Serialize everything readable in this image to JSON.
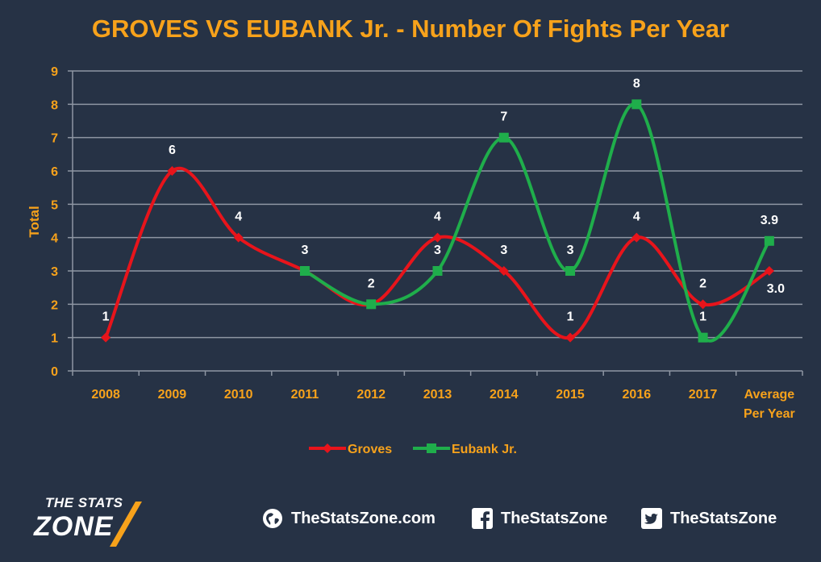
{
  "title": "GROVES VS EUBANK Jr. - Number Of Fights Per Year",
  "colors": {
    "background": "#263245",
    "accent": "#f7a21b",
    "groves": "#e8141b",
    "eubank": "#1fae4b",
    "grid": "#8e96a3"
  },
  "chart_data": {
    "type": "line",
    "title": "GROVES VS EUBANK Jr. - Number Of Fights Per Year",
    "ylabel": "Total",
    "xlabel": "",
    "ylim": [
      0,
      9
    ],
    "yticks": [
      "0",
      "1",
      "2",
      "3",
      "4",
      "5",
      "6",
      "7",
      "8",
      "9"
    ],
    "grid": true,
    "smooth": true,
    "legend_position": "bottom",
    "categories": [
      "2008",
      "2009",
      "2010",
      "2011",
      "2012",
      "2013",
      "2014",
      "2015",
      "2016",
      "2017",
      "Average Per Year"
    ],
    "series": [
      {
        "name": "Groves",
        "color": "#e8141b",
        "marker": "diamond",
        "values": [
          1,
          6,
          4,
          3,
          2,
          4,
          3,
          1,
          4,
          2,
          3.0
        ],
        "labels": [
          "1",
          "6",
          "4",
          "3",
          "2",
          "4",
          "3",
          "1",
          "4",
          "2",
          "3.0"
        ]
      },
      {
        "name": "Eubank Jr.",
        "color": "#1fae4b",
        "marker": "square",
        "values": [
          null,
          null,
          null,
          3,
          2,
          3,
          7,
          3,
          8,
          1,
          3.9
        ],
        "labels": [
          null,
          null,
          null,
          "3",
          "2",
          "3",
          "7",
          "3",
          "8",
          "1",
          "3.9"
        ]
      }
    ]
  },
  "footer": {
    "logo_top": "THE STATS",
    "logo_main": "ZONE",
    "website": "TheStatsZone.com",
    "facebook": "TheStatsZone",
    "twitter": "TheStatsZone",
    "icons": [
      "globe-icon",
      "facebook-icon",
      "twitter-icon"
    ]
  }
}
